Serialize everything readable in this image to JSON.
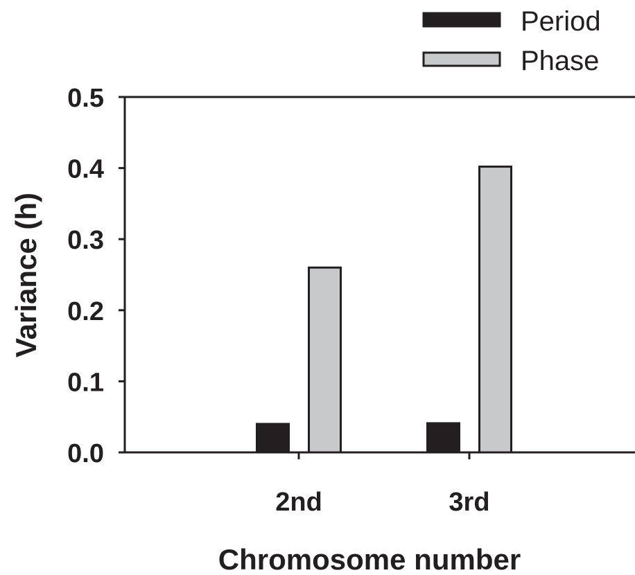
{
  "chart_data": {
    "type": "bar",
    "title": "",
    "xlabel": "Chromosome number",
    "ylabel": "Variance (h)",
    "categories": [
      "2nd",
      "3rd"
    ],
    "series": [
      {
        "name": "Period",
        "values": [
          0.04,
          0.041
        ],
        "color": "#231f20"
      },
      {
        "name": "Phase",
        "values": [
          0.26,
          0.402
        ],
        "color": "#c8c9ca"
      }
    ],
    "ylim": [
      0,
      0.5
    ],
    "yticks": [
      "0.0",
      "0.1",
      "0.2",
      "0.3",
      "0.4",
      "0.5"
    ],
    "grid": false,
    "legend_position": "top-right"
  }
}
